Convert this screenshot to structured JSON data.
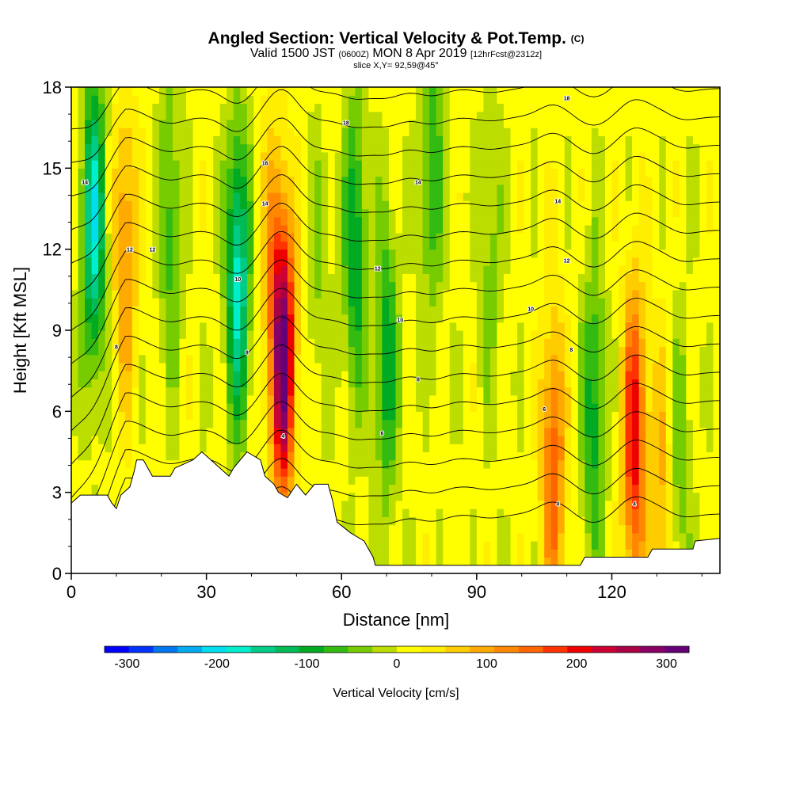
{
  "header": {
    "title_main": "Angled Section: Vertical Velocity & Pot.Temp.",
    "title_suffix": "(C)",
    "valid_pre": "Valid 1500 JST",
    "valid_zulu": "(0600Z)",
    "valid_post": "MON 8 Apr 2019",
    "forecast": "[12hrFcst@2312z]",
    "slice": "slice X,Y= 92,59@45°"
  },
  "chart_data": {
    "type": "heatmap",
    "title": "Angled Section: Vertical Velocity & Pot.Temp.",
    "xlabel": "Distance [nm]",
    "ylabel": "Height [Kft MSL]",
    "xlim": [
      0,
      144
    ],
    "ylim": [
      0,
      18
    ],
    "x_ticks": [
      0,
      30,
      60,
      90,
      120
    ],
    "y_ticks": [
      0,
      3,
      6,
      9,
      12,
      15,
      18
    ],
    "colorbar": {
      "title": "Vertical Velocity [cm/s]",
      "ticks": [
        -300,
        -200,
        -100,
        0,
        100,
        200,
        300
      ],
      "range": [
        -325,
        325
      ],
      "colors": [
        "#0000ff",
        "#0033ff",
        "#0077ee",
        "#00aaee",
        "#00ddee",
        "#00eecc",
        "#00cc88",
        "#00bb55",
        "#00aa22",
        "#33bb11",
        "#77cc00",
        "#bbdd00",
        "#ffff00",
        "#ffee00",
        "#ffcc00",
        "#ffaa00",
        "#ff8800",
        "#ff6600",
        "#ff3300",
        "#ee0000",
        "#cc0033",
        "#aa0044",
        "#880066",
        "#660077"
      ]
    },
    "vertical_velocity_cores": [
      {
        "x": 5,
        "z": 13,
        "w": -190
      },
      {
        "x": 12,
        "z": 12,
        "w": 110
      },
      {
        "x": 22,
        "z": 13,
        "w": -80
      },
      {
        "x": 37,
        "z": 11,
        "w": -190
      },
      {
        "x": 47,
        "z": 8,
        "w": 300
      },
      {
        "x": 44,
        "z": 12,
        "w": 60
      },
      {
        "x": 55,
        "z": 11,
        "w": -40
      },
      {
        "x": 63,
        "z": 12,
        "w": -120
      },
      {
        "x": 70,
        "z": 8,
        "w": -110
      },
      {
        "x": 80,
        "z": 15,
        "w": -90
      },
      {
        "x": 93,
        "z": 12,
        "w": -50
      },
      {
        "x": 107,
        "z": 4,
        "w": 150
      },
      {
        "x": 116,
        "z": 6,
        "w": -110
      },
      {
        "x": 125,
        "z": 5,
        "w": 200
      },
      {
        "x": 131,
        "z": 3,
        "w": 80
      },
      {
        "x": 135,
        "z": 4,
        "w": -60
      }
    ],
    "theta_contour_labels": [
      {
        "x": 3,
        "z": 14.5,
        "text": "14"
      },
      {
        "x": 13,
        "z": 12,
        "text": "12"
      },
      {
        "x": 18,
        "z": 12,
        "text": "12"
      },
      {
        "x": 10,
        "z": 8.4,
        "text": "8"
      },
      {
        "x": 43,
        "z": 15.2,
        "text": "16"
      },
      {
        "x": 43,
        "z": 13.7,
        "text": "14"
      },
      {
        "x": 37,
        "z": 10.9,
        "text": "10"
      },
      {
        "x": 39,
        "z": 8.2,
        "text": "8"
      },
      {
        "x": 47,
        "z": 5.1,
        "text": "4"
      },
      {
        "x": 61,
        "z": 16.7,
        "text": "18"
      },
      {
        "x": 77,
        "z": 14.5,
        "text": "14"
      },
      {
        "x": 68,
        "z": 11.3,
        "text": "12"
      },
      {
        "x": 73,
        "z": 9.4,
        "text": "10"
      },
      {
        "x": 77,
        "z": 7.2,
        "text": "8"
      },
      {
        "x": 69,
        "z": 5.2,
        "text": "6"
      },
      {
        "x": 102,
        "z": 9.8,
        "text": "10"
      },
      {
        "x": 110,
        "z": 17.6,
        "text": "18"
      },
      {
        "x": 108,
        "z": 13.8,
        "text": "14"
      },
      {
        "x": 110,
        "z": 11.6,
        "text": "12"
      },
      {
        "x": 111,
        "z": 8.3,
        "text": "8"
      },
      {
        "x": 105,
        "z": 6.1,
        "text": "6"
      },
      {
        "x": 108,
        "z": 2.6,
        "text": "4"
      },
      {
        "x": 125,
        "z": 2.6,
        "text": "4"
      }
    ],
    "terrain": [
      [
        0,
        2.6
      ],
      [
        2,
        2.9
      ],
      [
        8,
        2.9
      ],
      [
        9,
        2.6
      ],
      [
        10,
        2.4
      ],
      [
        11,
        2.9
      ],
      [
        13,
        3.2
      ],
      [
        14,
        3.8
      ],
      [
        14.5,
        4.2
      ],
      [
        16,
        4.2
      ],
      [
        17,
        3.9
      ],
      [
        18,
        3.6
      ],
      [
        22,
        3.6
      ],
      [
        23,
        3.9
      ],
      [
        27,
        4.2
      ],
      [
        29,
        4.5
      ],
      [
        31,
        4.2
      ],
      [
        33,
        3.9
      ],
      [
        35,
        3.6
      ],
      [
        36,
        3.9
      ],
      [
        39,
        4.5
      ],
      [
        42,
        4.2
      ],
      [
        43,
        3.6
      ],
      [
        45,
        3.3
      ],
      [
        46,
        3.0
      ],
      [
        48,
        2.8
      ],
      [
        50,
        3.3
      ],
      [
        52,
        2.9
      ],
      [
        54,
        3.3
      ],
      [
        57,
        3.3
      ],
      [
        58,
        2.7
      ],
      [
        59,
        1.9
      ],
      [
        62,
        1.5
      ],
      [
        65,
        1.2
      ],
      [
        67,
        0.6
      ],
      [
        67.5,
        0.3
      ],
      [
        101,
        0.3
      ],
      [
        113,
        0.3
      ],
      [
        114,
        0.6
      ],
      [
        128,
        0.6
      ],
      [
        129,
        0.9
      ],
      [
        138,
        0.9
      ],
      [
        138.5,
        1.2
      ],
      [
        144,
        1.3
      ]
    ]
  }
}
